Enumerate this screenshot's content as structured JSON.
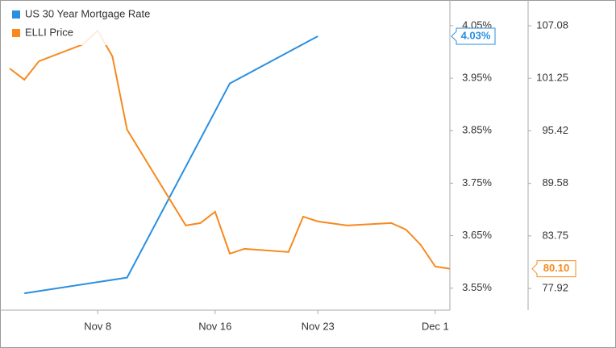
{
  "chart_data": {
    "type": "line",
    "xlim": [
      "Nov 2",
      "Dec 2"
    ],
    "xticks": [
      "Nov 8",
      "Nov 16",
      "Nov 23",
      "Dec 1"
    ],
    "ylim": [
      3.508,
      4.099
    ],
    "yticks": [
      {
        "value": 3.55,
        "label": "3.55%"
      },
      {
        "value": 3.65,
        "label": "3.65%"
      },
      {
        "value": 3.75,
        "label": "3.75%"
      },
      {
        "value": 3.85,
        "label": "3.85%"
      },
      {
        "value": 3.95,
        "label": "3.95%"
      },
      {
        "value": 4.05,
        "label": "4.05%"
      }
    ],
    "y2lim": [
      75.51,
      109.94
    ],
    "y2ticks": [
      77.92,
      83.75,
      89.58,
      95.42,
      101.25,
      107.08
    ],
    "legend": "top-left",
    "series": [
      {
        "name": "US 30 Year Mortgage Rate",
        "color": "#2a8fe0",
        "axis": "y",
        "x": [
          "Nov 3",
          "Nov 10",
          "Nov 17",
          "Nov 23"
        ],
        "values": [
          3.54,
          3.57,
          3.94,
          4.03
        ],
        "value_labels": [
          null,
          null,
          null,
          "4.03%"
        ]
      },
      {
        "name": "ELLI Price",
        "color": "#f7891e",
        "axis": "y2",
        "x": [
          "Nov 2",
          "Nov 3",
          "Nov 4",
          "Nov 7",
          "Nov 8",
          "Nov 9",
          "Nov 10",
          "Nov 14",
          "Nov 15",
          "Nov 16",
          "Nov 17",
          "Nov 18",
          "Nov 21",
          "Nov 22",
          "Nov 23",
          "Nov 25",
          "Nov 28",
          "Nov 29",
          "Nov 30",
          "Dec 1",
          "Dec 2"
        ],
        "values": [
          102.34,
          101.09,
          103.15,
          105.02,
          106.54,
          103.68,
          95.55,
          84.91,
          85.18,
          86.43,
          81.78,
          82.32,
          81.96,
          85.89,
          85.36,
          84.91,
          85.18,
          84.46,
          82.78,
          80.35,
          80.1
        ],
        "value_labels": [
          null,
          null,
          null,
          null,
          null,
          null,
          null,
          null,
          null,
          null,
          null,
          null,
          null,
          null,
          null,
          null,
          null,
          null,
          null,
          null,
          "80.10"
        ]
      }
    ]
  }
}
